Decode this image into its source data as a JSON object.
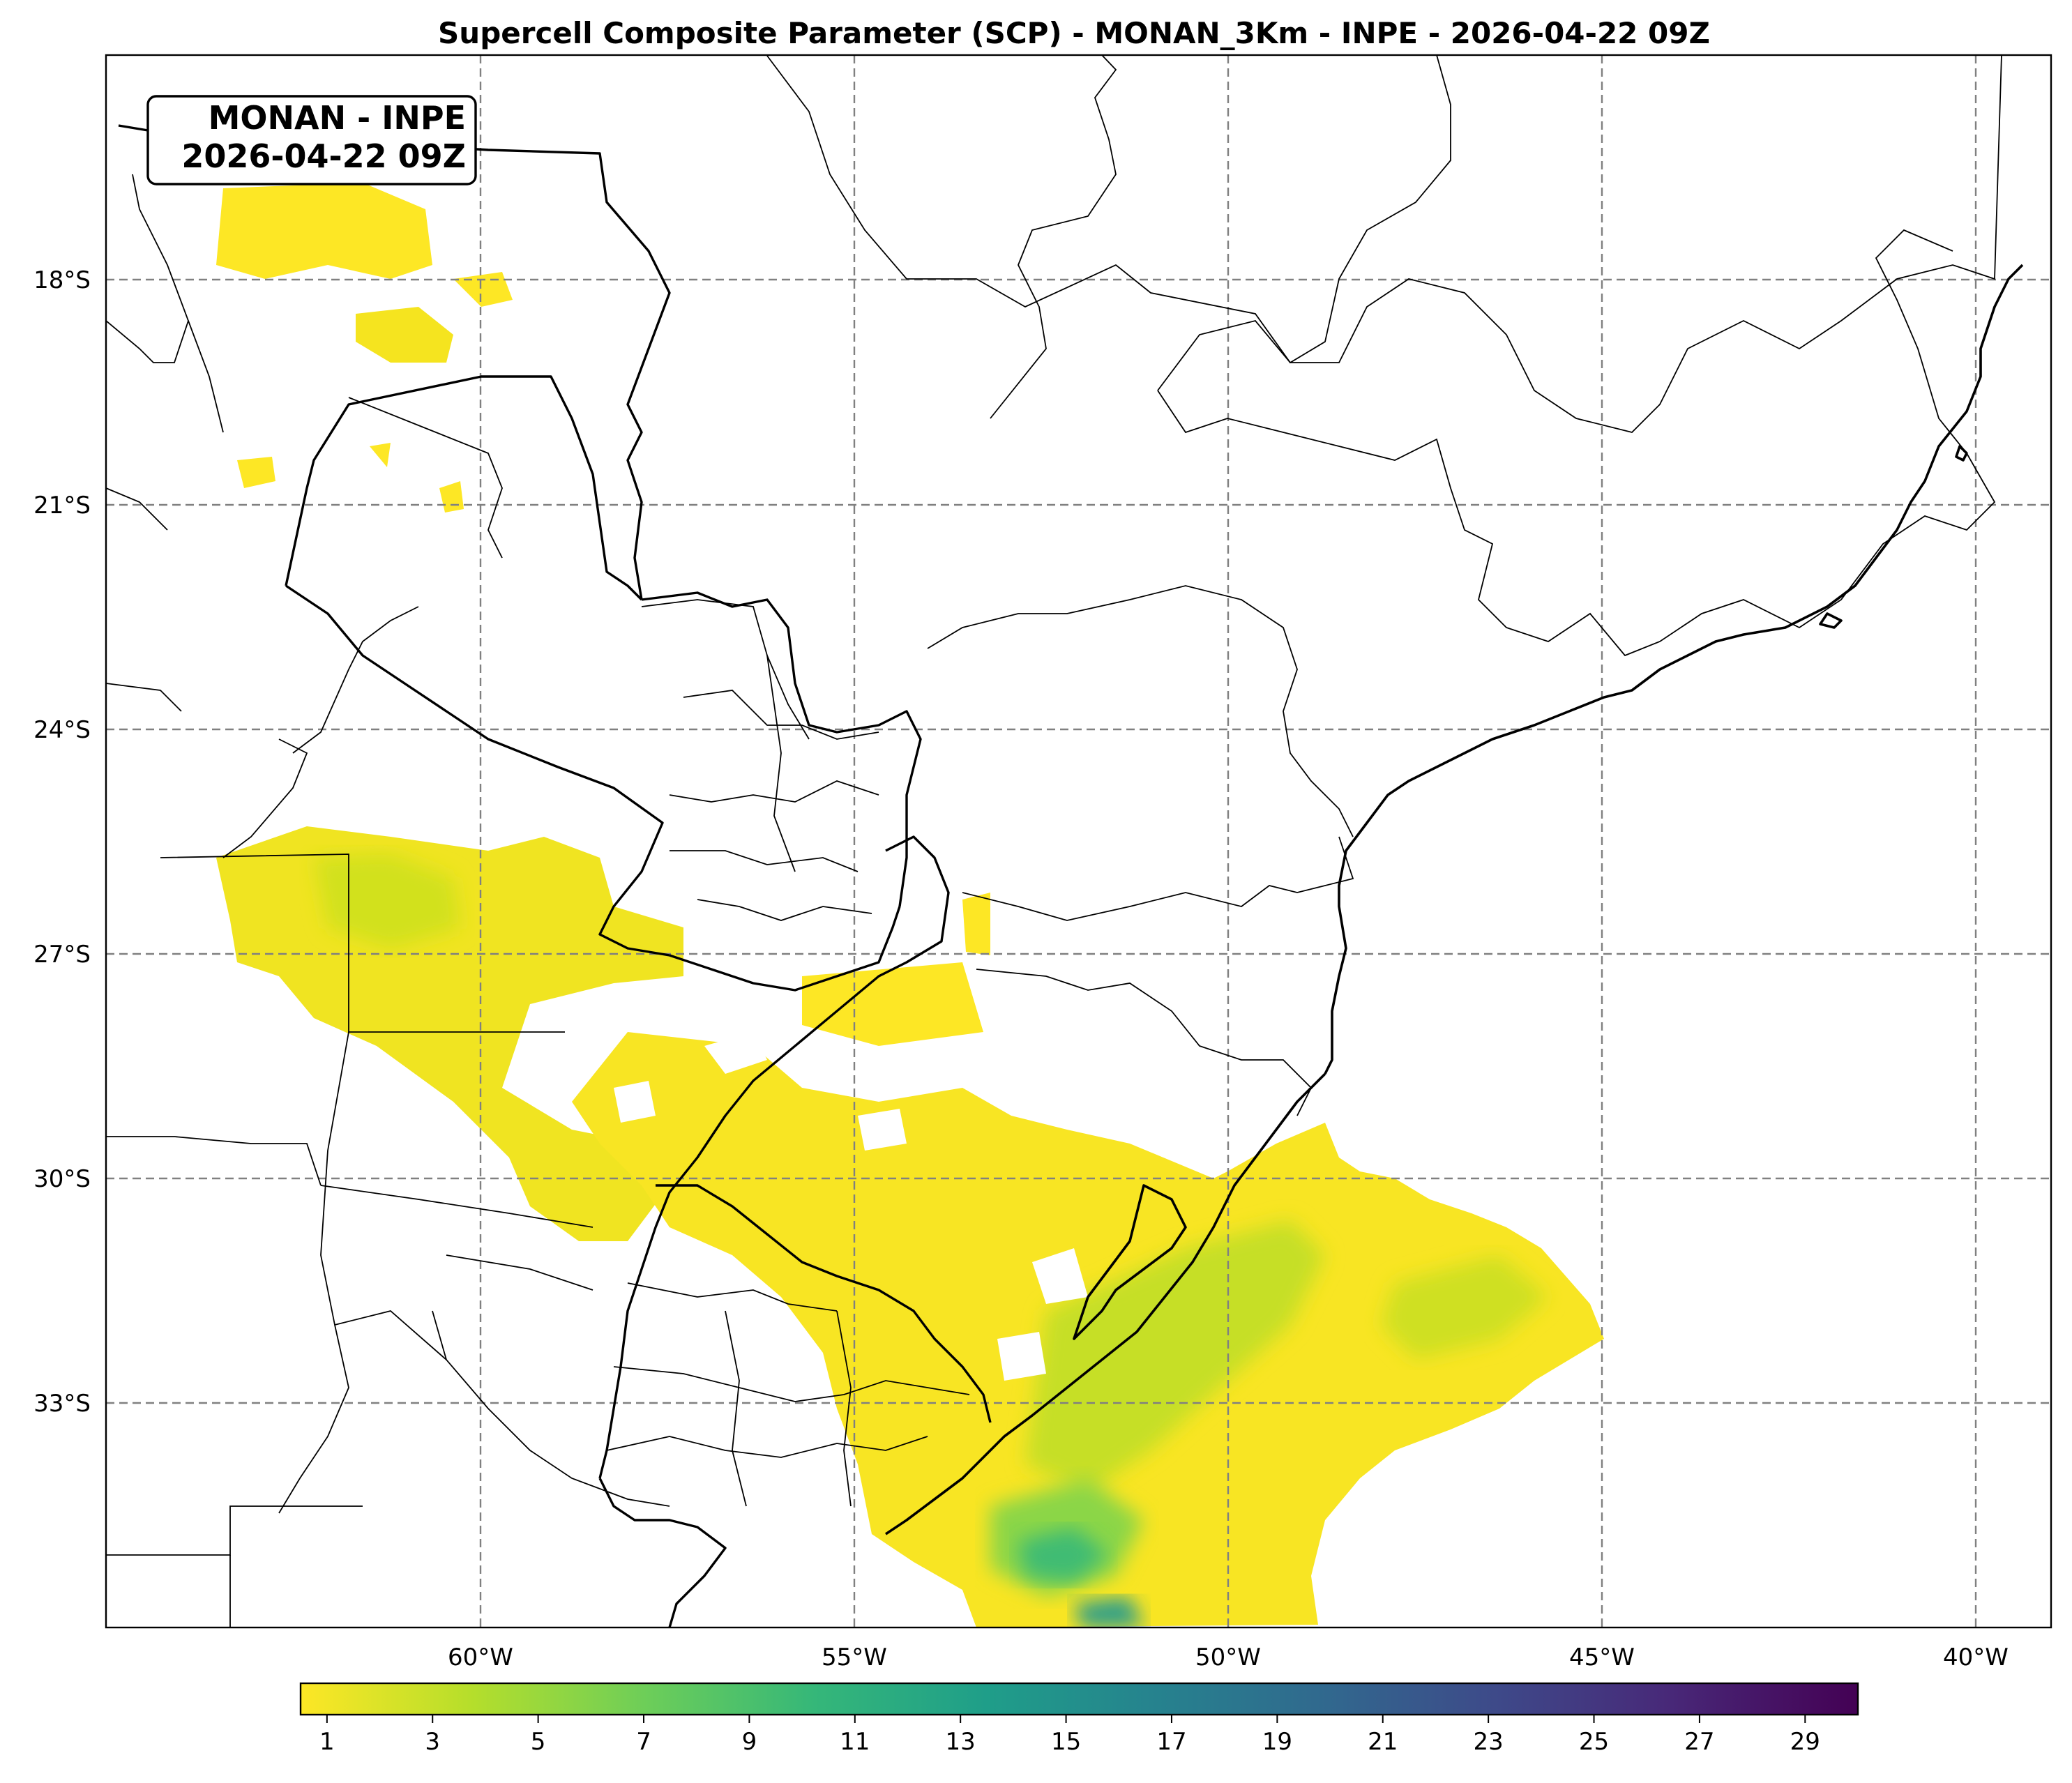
{
  "title": "Supercell Composite Parameter (SCP) - MONAN_3Km - INPE - 2026-04-22 09Z",
  "info_box": {
    "line1": "MONAN - INPE",
    "line2": "2026-04-22 09Z"
  },
  "map": {
    "lon_ticks": [
      "60°W",
      "55°W",
      "50°W",
      "45°W",
      "40°W"
    ],
    "lat_ticks": [
      "18°S",
      "21°S",
      "24°S",
      "27°S",
      "30°S",
      "33°S"
    ],
    "gridlines": "dashed gray"
  },
  "colorbar": {
    "colormap": "viridis_r",
    "min": 0.5,
    "max": 30,
    "tick_labels": [
      "1",
      "3",
      "5",
      "7",
      "9",
      "11",
      "13",
      "15",
      "17",
      "19",
      "21",
      "23",
      "25",
      "27",
      "29"
    ],
    "colors": [
      "#fde725",
      "#b5de2b",
      "#6ece58",
      "#35b779",
      "#1f9e89",
      "#26828e",
      "#31688e",
      "#3e4989",
      "#482878",
      "#440154"
    ]
  },
  "field": {
    "regions": [
      {
        "name": "southern-brazil-uruguay-atlantic",
        "level": 2.5
      },
      {
        "name": "northern-argentina-paraguay",
        "level": 2
      },
      {
        "name": "bolivia-north",
        "level": 1.2
      },
      {
        "name": "offshore-max-cores",
        "level": 9
      }
    ]
  }
}
